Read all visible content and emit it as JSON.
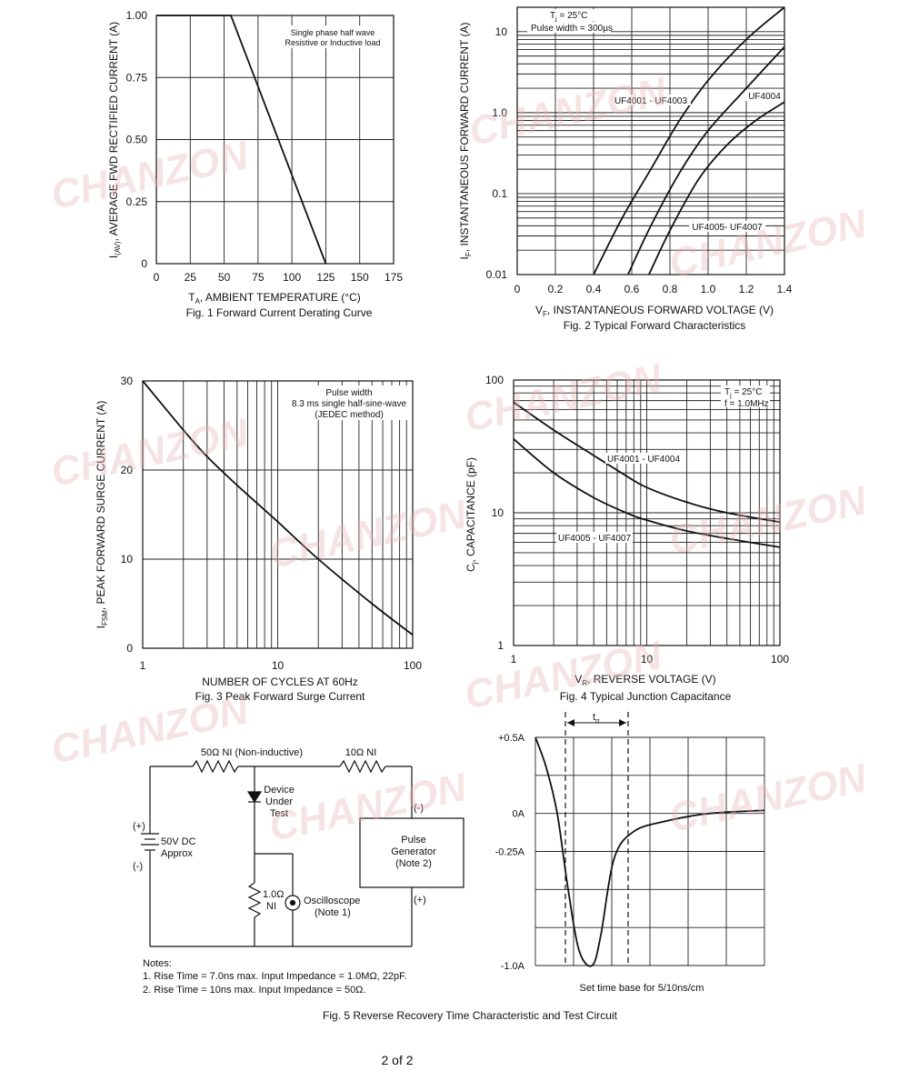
{
  "watermark": "CHANZON",
  "page_label": "2 of 2",
  "fig5_caption": "Fig. 5  Reverse Recovery Time Characteristic and Test Circuit",
  "chart_data": [
    {
      "id": "fig1",
      "type": "line",
      "caption": "Fig. 1  Forward Current Derating Curve",
      "xlabel_main": "T",
      "xlabel_sub": "A",
      "xlabel_rest": ", AMBIENT TEMPERATURE (°C)",
      "ylabel_main": "I",
      "ylabel_sub": "(AV)",
      "ylabel_rest": ", AVERAGE FWD RECTIFIED CURRENT (A)",
      "xlim": [
        0,
        175
      ],
      "ylim": [
        0,
        1.0
      ],
      "xticks": [
        "0",
        "25",
        "50",
        "75",
        "100",
        "125",
        "150",
        "175"
      ],
      "yticks": [
        "0",
        "0.25",
        "0.50",
        "0.75",
        "1.00"
      ],
      "annotation": [
        "Single phase half wave",
        "Resistive or Inductive load"
      ],
      "series": [
        {
          "x": [
            0,
            55,
            125
          ],
          "y": [
            1.0,
            1.0,
            0
          ]
        }
      ]
    },
    {
      "id": "fig2",
      "type": "line",
      "caption": "Fig. 2  Typical Forward Characteristics",
      "xlabel_main": "V",
      "xlabel_sub": "F",
      "xlabel_rest": ", INSTANTANEOUS FORWARD VOLTAGE (V)",
      "ylabel_main": "I",
      "ylabel_sub": "F",
      "ylabel_rest": ", INSTANTANEOUS FORWARD CURRENT (A)",
      "xlim": [
        0,
        1.4
      ],
      "ylim": [
        0.01,
        20
      ],
      "yscale": "log",
      "xticks": [
        "0",
        "0.2",
        "0.4",
        "0.6",
        "0.8",
        "1.0",
        "1.2",
        "1.4"
      ],
      "yticks": [
        "0.01",
        "0.1",
        "1.0",
        "10"
      ],
      "annotation_tj": "T",
      "annotation_tj_sub": "j",
      "annotation_tj_rest": " = 25°C",
      "annotation_pw": "Pulse width = 300µs",
      "series": [
        {
          "name": "UF4001 - UF4003",
          "x": [
            0.4,
            0.55,
            0.7,
            0.85,
            1.0,
            1.2,
            1.4
          ],
          "y": [
            0.01,
            0.05,
            0.2,
            0.8,
            2.5,
            8,
            20
          ]
        },
        {
          "name": "UF4004",
          "x": [
            0.58,
            0.7,
            0.85,
            1.0,
            1.2,
            1.4
          ],
          "y": [
            0.01,
            0.04,
            0.18,
            0.6,
            2.0,
            6.5
          ]
        },
        {
          "name": "UF4005- UF4007",
          "x": [
            0.69,
            0.8,
            0.95,
            1.1,
            1.25,
            1.4
          ],
          "y": [
            0.01,
            0.035,
            0.15,
            0.4,
            0.8,
            1.35
          ]
        }
      ]
    },
    {
      "id": "fig3",
      "type": "line",
      "caption": "Fig. 3  Peak Forward Surge Current",
      "xlabel_main": "NUMBER OF CYCLES AT 60Hz",
      "ylabel_main": "I",
      "ylabel_sub": "FSM",
      "ylabel_rest": ", PEAK FORWARD SURGE CURRENT (A)",
      "xlim": [
        1,
        100
      ],
      "xscale": "log",
      "ylim": [
        0,
        30
      ],
      "xticks": [
        "1",
        "10",
        "100"
      ],
      "yticks": [
        "0",
        "10",
        "20",
        "30"
      ],
      "annotation": [
        "Pulse width",
        "8.3 ms single half-sine-wave",
        "(JEDEC method)"
      ],
      "series": [
        {
          "x": [
            1,
            2,
            3,
            5,
            10,
            20,
            50,
            100
          ],
          "y": [
            30,
            24.5,
            21.5,
            18.3,
            14.2,
            10,
            5,
            1.5
          ]
        }
      ]
    },
    {
      "id": "fig4",
      "type": "line",
      "caption": "Fig. 4  Typical Junction Capacitance",
      "xlabel_main": "V",
      "xlabel_sub": "R",
      "xlabel_rest": ", REVERSE VOLTAGE (V)",
      "ylabel_main": "C",
      "ylabel_sub": "j",
      "ylabel_rest": ", CAPACITANCE (pF)",
      "xlim": [
        1,
        100
      ],
      "xscale": "log",
      "ylim": [
        1,
        100
      ],
      "yscale": "log",
      "xticks": [
        "1",
        "10",
        "100"
      ],
      "yticks": [
        "1",
        "10",
        "100"
      ],
      "annotation_tj": "T",
      "annotation_tj_sub": "j",
      "annotation_tj_rest": " = 25°C",
      "annotation_f": "f = 1.0MHz",
      "series": [
        {
          "name": "UF4001 - UF4004",
          "x": [
            1,
            2,
            4,
            7,
            10,
            20,
            40,
            100
          ],
          "y": [
            68,
            42,
            27,
            19,
            15.5,
            12,
            10,
            8.5
          ]
        },
        {
          "name": "UF4005 - UF4007",
          "x": [
            1,
            2,
            4,
            7,
            10,
            20,
            40,
            100
          ],
          "y": [
            36,
            20,
            13,
            10,
            8.8,
            7.3,
            6.4,
            5.5
          ]
        }
      ]
    },
    {
      "id": "fig5",
      "type": "line",
      "ylim": [
        -1.0,
        0.5
      ],
      "yticks": [
        "+0.5A",
        "0A",
        "-0.25A",
        "-1.0A"
      ],
      "trr_label": "t",
      "trr_sub": "rr",
      "xlabel_main": "Set time base for 5/10ns/cm",
      "series": [
        {
          "x": [
            0,
            0.5,
            1,
            1.5,
            2,
            2.6,
            3,
            3.6,
            4.5,
            6,
            8,
            10.5
          ],
          "y": [
            0.5,
            0.3,
            0,
            -0.5,
            -0.9,
            -1.0,
            -0.8,
            -0.3,
            -0.12,
            -0.05,
            0,
            0.02
          ]
        }
      ]
    }
  ],
  "circuit": {
    "r1_label": "50Ω NI (Non-inductive)",
    "r2_label": "10Ω NI",
    "device_label": [
      "Device",
      "Under",
      "Test"
    ],
    "source_plus": "(+)",
    "source_minus": "(-)",
    "source_label": [
      "50V DC",
      "Approx"
    ],
    "r3_label": [
      "1.0Ω",
      "NI"
    ],
    "scope_label": [
      "Oscilloscope",
      "(Note 1)"
    ],
    "gen_minus": "(-)",
    "gen_plus": "(+)",
    "gen_label": [
      "Pulse",
      "Generator",
      "(Note 2)"
    ],
    "notes_title": "Notes:",
    "note1": "1. Rise Time = 7.0ns max. Input Impedance = 1.0MΩ, 22pF.",
    "note2": "2. Rise Time = 10ns max. Input Impedance = 50Ω."
  }
}
